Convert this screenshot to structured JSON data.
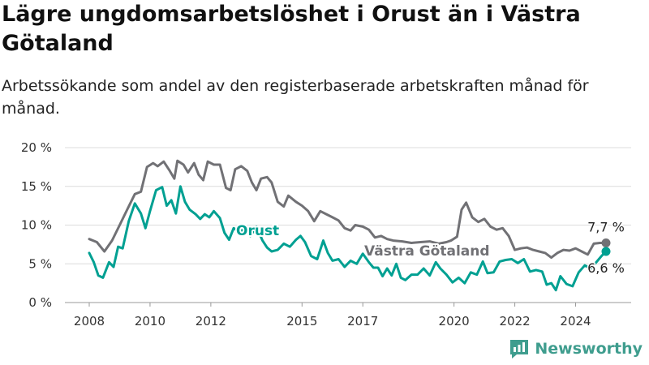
{
  "title": "Lägre ungdomsarbetslöshet i Orust än i Västra Götaland",
  "subtitle": "Arbetssökande som andel av den registerbaserade arbetskraften månad för månad.",
  "brand": {
    "name": "Newsworthy",
    "icon": "bar-chart-icon",
    "color": "#3f9d8e"
  },
  "chart_data": {
    "type": "line",
    "title": "Lägre ungdomsarbetslöshet i Orust än i Västra Götaland",
    "subtitle": "Arbetssökande som andel av den registerbaserade arbetskraften månad för månad.",
    "xlabel": "",
    "ylabel": "",
    "x_range": [
      2008.0,
      2025.5
    ],
    "ylim": [
      0,
      20
    ],
    "y_ticks": [
      0,
      5,
      10,
      15,
      20
    ],
    "y_tick_labels": [
      "0 %",
      "5 %",
      "10 %",
      "15 %",
      "20 %"
    ],
    "x_ticks": [
      2008,
      2010,
      2012,
      2015,
      2017,
      2020,
      2022,
      2024
    ],
    "x_tick_labels": [
      "2008",
      "2010",
      "2012",
      "2015",
      "2017",
      "2020",
      "2022",
      "2024"
    ],
    "grid": "horizontal",
    "legend": "none",
    "series": [
      {
        "name": "Västra Götaland",
        "color": "#717175",
        "end_label": "7,7 %",
        "points": [
          [
            2008.0,
            8.2
          ],
          [
            2008.25,
            7.8
          ],
          [
            2008.5,
            6.6
          ],
          [
            2008.75,
            8.0
          ],
          [
            2009.0,
            10.0
          ],
          [
            2009.25,
            12.0
          ],
          [
            2009.5,
            14.0
          ],
          [
            2009.7,
            14.3
          ],
          [
            2009.9,
            17.5
          ],
          [
            2010.1,
            18.0
          ],
          [
            2010.25,
            17.6
          ],
          [
            2010.45,
            18.2
          ],
          [
            2010.65,
            17.0
          ],
          [
            2010.8,
            16.0
          ],
          [
            2010.9,
            18.3
          ],
          [
            2011.1,
            17.8
          ],
          [
            2011.25,
            16.8
          ],
          [
            2011.45,
            18.0
          ],
          [
            2011.6,
            16.5
          ],
          [
            2011.75,
            15.8
          ],
          [
            2011.9,
            18.2
          ],
          [
            2012.1,
            17.8
          ],
          [
            2012.3,
            17.8
          ],
          [
            2012.5,
            14.8
          ],
          [
            2012.65,
            14.5
          ],
          [
            2012.8,
            17.2
          ],
          [
            2013.0,
            17.6
          ],
          [
            2013.2,
            17.0
          ],
          [
            2013.35,
            15.5
          ],
          [
            2013.5,
            14.5
          ],
          [
            2013.65,
            16.0
          ],
          [
            2013.85,
            16.2
          ],
          [
            2014.0,
            15.5
          ],
          [
            2014.2,
            13.0
          ],
          [
            2014.4,
            12.4
          ],
          [
            2014.55,
            13.8
          ],
          [
            2014.8,
            13.0
          ],
          [
            2015.0,
            12.5
          ],
          [
            2015.2,
            11.8
          ],
          [
            2015.4,
            10.5
          ],
          [
            2015.6,
            11.8
          ],
          [
            2015.8,
            11.4
          ],
          [
            2016.0,
            11.0
          ],
          [
            2016.2,
            10.6
          ],
          [
            2016.4,
            9.6
          ],
          [
            2016.6,
            9.3
          ],
          [
            2016.75,
            10.0
          ],
          [
            2017.0,
            9.8
          ],
          [
            2017.2,
            9.4
          ],
          [
            2017.4,
            8.4
          ],
          [
            2017.6,
            8.6
          ],
          [
            2017.8,
            8.2
          ],
          [
            2018.0,
            8.0
          ],
          [
            2018.3,
            7.9
          ],
          [
            2018.6,
            7.7
          ],
          [
            2018.9,
            7.8
          ],
          [
            2019.2,
            7.9
          ],
          [
            2019.5,
            7.6
          ],
          [
            2019.75,
            7.8
          ],
          [
            2019.9,
            8.0
          ],
          [
            2020.1,
            8.5
          ],
          [
            2020.25,
            12.0
          ],
          [
            2020.4,
            12.9
          ],
          [
            2020.6,
            11.0
          ],
          [
            2020.8,
            10.4
          ],
          [
            2021.0,
            10.8
          ],
          [
            2021.2,
            9.8
          ],
          [
            2021.4,
            9.4
          ],
          [
            2021.6,
            9.6
          ],
          [
            2021.8,
            8.6
          ],
          [
            2022.0,
            6.8
          ],
          [
            2022.2,
            7.0
          ],
          [
            2022.4,
            7.1
          ],
          [
            2022.6,
            6.8
          ],
          [
            2022.8,
            6.6
          ],
          [
            2023.0,
            6.4
          ],
          [
            2023.2,
            5.8
          ],
          [
            2023.4,
            6.4
          ],
          [
            2023.6,
            6.8
          ],
          [
            2023.8,
            6.7
          ],
          [
            2024.0,
            7.0
          ],
          [
            2024.2,
            6.6
          ],
          [
            2024.4,
            6.2
          ],
          [
            2024.6,
            7.6
          ],
          [
            2024.8,
            7.7
          ],
          [
            2025.0,
            7.7
          ]
        ]
      },
      {
        "name": "Orust",
        "color": "#00a092",
        "end_label": "6,6 %",
        "points": [
          [
            2008.0,
            6.4
          ],
          [
            2008.15,
            5.2
          ],
          [
            2008.3,
            3.5
          ],
          [
            2008.45,
            3.2
          ],
          [
            2008.65,
            5.2
          ],
          [
            2008.8,
            4.6
          ],
          [
            2008.95,
            7.2
          ],
          [
            2009.1,
            7.0
          ],
          [
            2009.3,
            10.5
          ],
          [
            2009.5,
            12.8
          ],
          [
            2009.7,
            11.5
          ],
          [
            2009.85,
            9.6
          ],
          [
            2010.0,
            11.8
          ],
          [
            2010.2,
            14.5
          ],
          [
            2010.4,
            14.9
          ],
          [
            2010.55,
            12.5
          ],
          [
            2010.7,
            13.2
          ],
          [
            2010.85,
            11.5
          ],
          [
            2011.0,
            15.0
          ],
          [
            2011.15,
            13.0
          ],
          [
            2011.3,
            12.0
          ],
          [
            2011.5,
            11.4
          ],
          [
            2011.65,
            10.8
          ],
          [
            2011.8,
            11.4
          ],
          [
            2011.95,
            11.0
          ],
          [
            2012.1,
            11.8
          ],
          [
            2012.3,
            10.9
          ],
          [
            2012.45,
            9.0
          ],
          [
            2012.6,
            8.1
          ],
          [
            2012.75,
            9.6
          ],
          [
            2012.9,
            9.2
          ],
          [
            2013.1,
            9.4
          ],
          [
            2013.3,
            8.6
          ],
          [
            2013.5,
            9.8
          ],
          [
            2013.7,
            8.0
          ],
          [
            2013.85,
            7.1
          ],
          [
            2014.0,
            6.6
          ],
          [
            2014.2,
            6.8
          ],
          [
            2014.4,
            7.6
          ],
          [
            2014.6,
            7.2
          ],
          [
            2014.8,
            8.1
          ],
          [
            2014.95,
            8.6
          ],
          [
            2015.1,
            7.8
          ],
          [
            2015.3,
            6.0
          ],
          [
            2015.5,
            5.6
          ],
          [
            2015.7,
            8.0
          ],
          [
            2015.85,
            6.4
          ],
          [
            2016.0,
            5.4
          ],
          [
            2016.2,
            5.6
          ],
          [
            2016.4,
            4.6
          ],
          [
            2016.6,
            5.4
          ],
          [
            2016.8,
            5.0
          ],
          [
            2017.0,
            6.3
          ],
          [
            2017.2,
            5.2
          ],
          [
            2017.35,
            4.5
          ],
          [
            2017.5,
            4.5
          ],
          [
            2017.65,
            3.4
          ],
          [
            2017.8,
            4.4
          ],
          [
            2017.95,
            3.5
          ],
          [
            2018.1,
            5.0
          ],
          [
            2018.25,
            3.2
          ],
          [
            2018.4,
            2.9
          ],
          [
            2018.6,
            3.6
          ],
          [
            2018.8,
            3.6
          ],
          [
            2019.0,
            4.4
          ],
          [
            2019.2,
            3.5
          ],
          [
            2019.4,
            5.2
          ],
          [
            2019.55,
            4.4
          ],
          [
            2019.75,
            3.6
          ],
          [
            2019.95,
            2.6
          ],
          [
            2020.15,
            3.2
          ],
          [
            2020.35,
            2.5
          ],
          [
            2020.55,
            3.9
          ],
          [
            2020.75,
            3.6
          ],
          [
            2020.95,
            5.3
          ],
          [
            2021.1,
            3.8
          ],
          [
            2021.3,
            3.9
          ],
          [
            2021.5,
            5.3
          ],
          [
            2021.7,
            5.5
          ],
          [
            2021.9,
            5.6
          ],
          [
            2022.1,
            5.1
          ],
          [
            2022.3,
            5.6
          ],
          [
            2022.5,
            4.0
          ],
          [
            2022.7,
            4.2
          ],
          [
            2022.9,
            4.0
          ],
          [
            2023.05,
            2.3
          ],
          [
            2023.2,
            2.5
          ],
          [
            2023.35,
            1.6
          ],
          [
            2023.5,
            3.4
          ],
          [
            2023.7,
            2.4
          ],
          [
            2023.9,
            2.1
          ],
          [
            2024.1,
            3.9
          ],
          [
            2024.3,
            4.8
          ],
          [
            2024.5,
            4.4
          ],
          [
            2024.7,
            5.3
          ],
          [
            2024.85,
            6.0
          ],
          [
            2025.0,
            6.6
          ]
        ]
      }
    ]
  }
}
